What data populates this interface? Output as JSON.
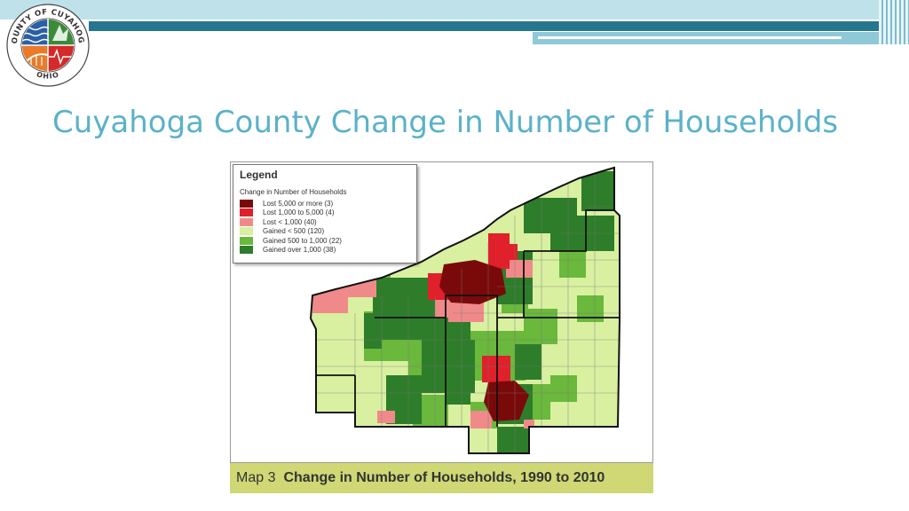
{
  "slide": {
    "title": "Cuyahoga County Change in Number of Households"
  },
  "seal": {
    "top_text": "COUNTY OF CUYAHOGA",
    "bottom_text": "OHIO"
  },
  "legend": {
    "title": "Legend",
    "subtitle": "Change in Number of Households",
    "items": [
      {
        "label": "Lost 5,000 or more (3)",
        "color": "#7a0a0a"
      },
      {
        "label": "Lost 1,000 to 5,000 (4)",
        "color": "#e0202a"
      },
      {
        "label": "Lost < 1,000 (40)",
        "color": "#f08a8a"
      },
      {
        "label": "Gained < 500 (120)",
        "color": "#d8f0a0"
      },
      {
        "label": "Gained 500 to 1,000 (22)",
        "color": "#6ab83c"
      },
      {
        "label": "Gained over 1,000 (38)",
        "color": "#2e7d2a"
      }
    ]
  },
  "caption": {
    "prefix": "Map 3",
    "text": "Change in Number of Households, 1990 to 2010",
    "background": "#cfd874"
  },
  "colors": {
    "header_dark": "#25768e",
    "header_light": "#bfe2ea",
    "title": "#5bb2c8"
  }
}
